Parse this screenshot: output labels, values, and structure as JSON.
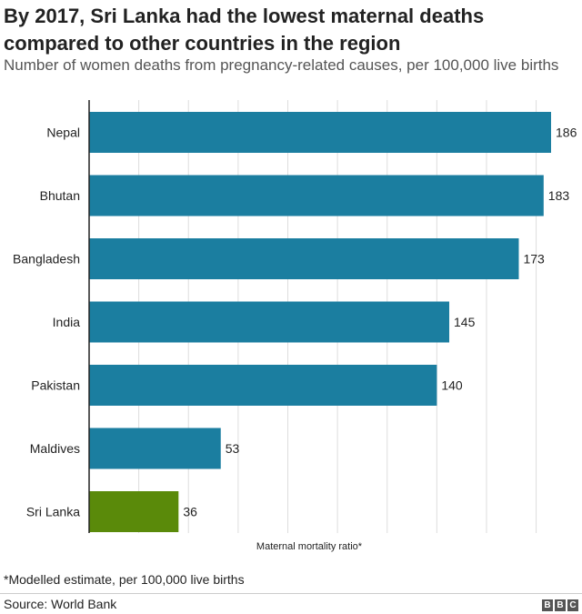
{
  "header": {
    "title": "By 2017, Sri Lanka had the lowest maternal deaths compared to other countries in the region",
    "subtitle": "Number of women deaths from pregnancy-related causes, per 100,000 live births"
  },
  "footer": {
    "footnote": "*Modelled estimate, per 100,000 live births",
    "source": "Source: World Bank",
    "logo": [
      "B",
      "B",
      "C"
    ]
  },
  "colors": {
    "bar": "#1b7ea0",
    "highlight": "#5a8a0a",
    "grid": "#dddddd",
    "axis": "#222222"
  },
  "chart_data": {
    "type": "bar",
    "orientation": "horizontal",
    "title": "By 2017, Sri Lanka had the lowest maternal deaths compared to other countries in the region",
    "subtitle": "Number of women deaths from pregnancy-related causes, per 100,000 live births",
    "xlabel": "Maternal mortality ratio*",
    "ylabel": "",
    "categories": [
      "Nepal",
      "Bhutan",
      "Bangladesh",
      "India",
      "Pakistan",
      "Maldives",
      "Sri Lanka"
    ],
    "values": [
      186,
      183,
      173,
      145,
      140,
      53,
      36
    ],
    "highlight": "Sri Lanka",
    "xlim": [
      0,
      186
    ],
    "grid": true,
    "data_labels": true
  }
}
